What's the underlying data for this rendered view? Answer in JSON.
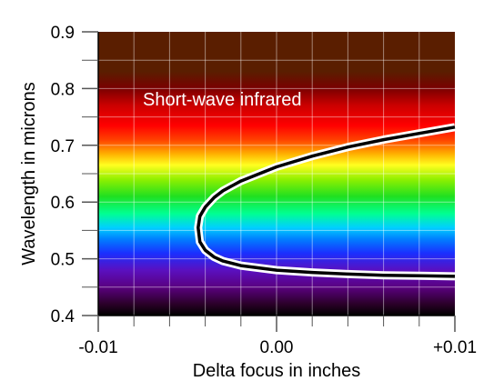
{
  "chart_data": {
    "type": "line",
    "xlabel": "Delta focus in inches",
    "ylabel": "Wavelength in microns",
    "xlim": [
      -0.01,
      0.01
    ],
    "ylim": [
      0.4,
      0.9
    ],
    "x_ticks": [
      {
        "value": -0.01,
        "label": "-0.01"
      },
      {
        "value": 0.0,
        "label": "0.00"
      },
      {
        "value": 0.01,
        "label": "+0.01"
      }
    ],
    "y_ticks": [
      {
        "value": 0.4,
        "label": "0.4"
      },
      {
        "value": 0.5,
        "label": "0.5"
      },
      {
        "value": 0.6,
        "label": "0.6"
      },
      {
        "value": 0.7,
        "label": "0.7"
      },
      {
        "value": 0.8,
        "label": "0.8"
      },
      {
        "value": 0.9,
        "label": "0.9"
      }
    ],
    "x_minor_step": 0.002,
    "y_minor_step": 0.05,
    "grid": true,
    "annotation": "Short-wave infrared",
    "infrared_color": "#5a1e00",
    "curve_color": "#000000",
    "curve_outline_color": "#ffffff",
    "series": [
      {
        "x": [
          0.01,
          0.008,
          0.006,
          0.004,
          0.002,
          0.0,
          -0.002,
          -0.003,
          -0.0035,
          -0.004,
          -0.0043,
          -0.0044,
          -0.0043,
          -0.004,
          -0.0035,
          -0.003,
          -0.002,
          0.0,
          0.002,
          0.004,
          0.006,
          0.008,
          0.01
        ],
        "y": [
          0.469,
          0.47,
          0.471,
          0.473,
          0.476,
          0.48,
          0.488,
          0.496,
          0.503,
          0.515,
          0.53,
          0.555,
          0.575,
          0.591,
          0.608,
          0.62,
          0.637,
          0.662,
          0.681,
          0.697,
          0.71,
          0.721,
          0.732
        ]
      }
    ]
  }
}
